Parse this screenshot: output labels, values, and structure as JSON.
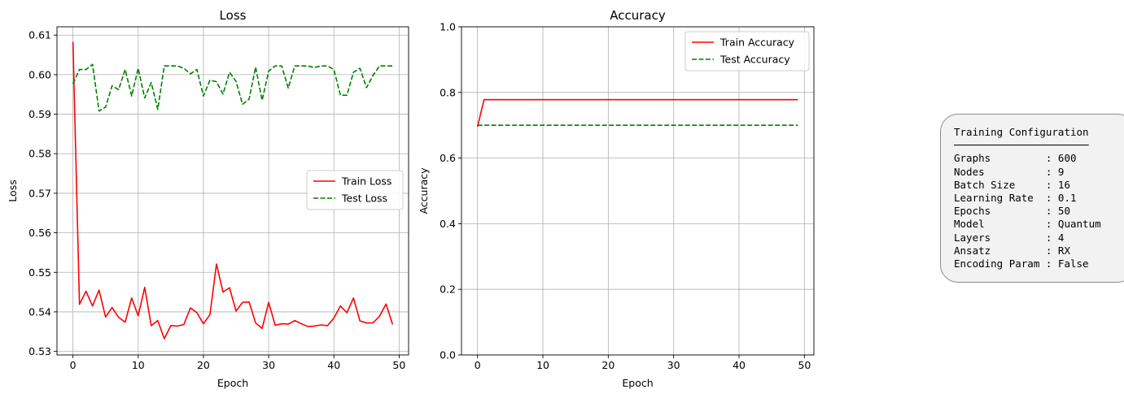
{
  "chart_data": [
    {
      "type": "line",
      "title": "Loss",
      "xlabel": "Epoch",
      "ylabel": "Loss",
      "xlim": [
        -2.45,
        51.45
      ],
      "ylim": [
        0.5291,
        0.6121
      ],
      "xticks": [
        0,
        10,
        20,
        30,
        40,
        50
      ],
      "yticks": [
        0.53,
        0.54,
        0.55,
        0.56,
        0.57,
        0.58,
        0.59,
        0.6,
        0.61
      ],
      "ytick_labels": [
        "0.53",
        "0.54",
        "0.55",
        "0.56",
        "0.57",
        "0.58",
        "0.59",
        "0.60",
        "0.61"
      ],
      "grid": true,
      "legend_position": "center-right",
      "series": [
        {
          "name": "Train Loss",
          "color": "#ff0000",
          "style": "solid",
          "x": [
            0,
            1,
            2,
            3,
            4,
            5,
            6,
            7,
            8,
            9,
            10,
            11,
            12,
            13,
            14,
            15,
            16,
            17,
            18,
            19,
            20,
            21,
            22,
            23,
            24,
            25,
            26,
            27,
            28,
            29,
            30,
            31,
            32,
            33,
            34,
            35,
            36,
            37,
            38,
            39,
            40,
            41,
            42,
            43,
            44,
            45,
            46,
            47,
            48,
            49
          ],
          "values": [
            0.6083,
            0.5419,
            0.5452,
            0.5415,
            0.5455,
            0.5387,
            0.5411,
            0.5386,
            0.5374,
            0.5435,
            0.539,
            0.5462,
            0.5365,
            0.5378,
            0.5332,
            0.5365,
            0.5364,
            0.5368,
            0.541,
            0.5398,
            0.537,
            0.5393,
            0.5521,
            0.545,
            0.5461,
            0.5402,
            0.5424,
            0.5425,
            0.5372,
            0.5358,
            0.5424,
            0.5366,
            0.537,
            0.5369,
            0.5378,
            0.537,
            0.5363,
            0.5364,
            0.5367,
            0.5365,
            0.5384,
            0.5415,
            0.5398,
            0.5435,
            0.5377,
            0.5372,
            0.5372,
            0.5389,
            0.542,
            0.5368
          ]
        },
        {
          "name": "Test Loss",
          "color": "#008000",
          "style": "dashed",
          "x": [
            0,
            1,
            2,
            3,
            4,
            5,
            6,
            7,
            8,
            9,
            10,
            11,
            12,
            13,
            14,
            15,
            16,
            17,
            18,
            19,
            20,
            21,
            22,
            23,
            24,
            25,
            26,
            27,
            28,
            29,
            30,
            31,
            32,
            33,
            34,
            35,
            36,
            37,
            38,
            39,
            40,
            41,
            42,
            43,
            44,
            45,
            46,
            47,
            48,
            49
          ],
          "values": [
            0.5977,
            0.6013,
            0.6013,
            0.6026,
            0.5908,
            0.5918,
            0.5972,
            0.5962,
            0.6013,
            0.5946,
            0.6016,
            0.5941,
            0.598,
            0.5912,
            0.6022,
            0.6022,
            0.6022,
            0.6016,
            0.6002,
            0.6013,
            0.5946,
            0.5986,
            0.5982,
            0.5951,
            0.6006,
            0.5983,
            0.5925,
            0.5938,
            0.6019,
            0.5935,
            0.6009,
            0.6022,
            0.6022,
            0.5966,
            0.6022,
            0.6022,
            0.6022,
            0.6018,
            0.6022,
            0.6022,
            0.6013,
            0.5948,
            0.5948,
            0.6006,
            0.6016,
            0.5967,
            0.5998,
            0.6022,
            0.6022,
            0.6022
          ]
        }
      ]
    },
    {
      "type": "line",
      "title": "Accuracy",
      "xlabel": "Epoch",
      "ylabel": "Accuracy",
      "xlim": [
        -2.45,
        51.45
      ],
      "ylim": [
        0.0,
        1.0
      ],
      "xticks": [
        0,
        10,
        20,
        30,
        40,
        50
      ],
      "yticks": [
        0.0,
        0.2,
        0.4,
        0.6,
        0.8,
        1.0
      ],
      "ytick_labels": [
        "0.0",
        "0.2",
        "0.4",
        "0.6",
        "0.8",
        "1.0"
      ],
      "grid": true,
      "legend_position": "top-right",
      "series": [
        {
          "name": "Train Accuracy",
          "color": "#ff0000",
          "style": "solid",
          "x": [
            0,
            1,
            2,
            3,
            4,
            5,
            6,
            7,
            8,
            9,
            10,
            11,
            12,
            13,
            14,
            15,
            16,
            17,
            18,
            19,
            20,
            21,
            22,
            23,
            24,
            25,
            26,
            27,
            28,
            29,
            30,
            31,
            32,
            33,
            34,
            35,
            36,
            37,
            38,
            39,
            40,
            41,
            42,
            43,
            44,
            45,
            46,
            47,
            48,
            49
          ],
          "values": [
            0.695,
            0.778,
            0.778,
            0.778,
            0.778,
            0.778,
            0.778,
            0.778,
            0.778,
            0.778,
            0.778,
            0.778,
            0.778,
            0.778,
            0.778,
            0.778,
            0.778,
            0.778,
            0.778,
            0.778,
            0.778,
            0.778,
            0.778,
            0.778,
            0.778,
            0.778,
            0.778,
            0.778,
            0.778,
            0.778,
            0.778,
            0.778,
            0.778,
            0.778,
            0.778,
            0.778,
            0.778,
            0.778,
            0.778,
            0.778,
            0.778,
            0.778,
            0.778,
            0.778,
            0.778,
            0.778,
            0.778,
            0.778,
            0.778,
            0.778
          ]
        },
        {
          "name": "Test Accuracy",
          "color": "#008000",
          "style": "dashed",
          "x": [
            0,
            1,
            2,
            3,
            4,
            5,
            6,
            7,
            8,
            9,
            10,
            11,
            12,
            13,
            14,
            15,
            16,
            17,
            18,
            19,
            20,
            21,
            22,
            23,
            24,
            25,
            26,
            27,
            28,
            29,
            30,
            31,
            32,
            33,
            34,
            35,
            36,
            37,
            38,
            39,
            40,
            41,
            42,
            43,
            44,
            45,
            46,
            47,
            48,
            49
          ],
          "values": [
            0.7,
            0.7,
            0.7,
            0.7,
            0.7,
            0.7,
            0.7,
            0.7,
            0.7,
            0.7,
            0.7,
            0.7,
            0.7,
            0.7,
            0.7,
            0.7,
            0.7,
            0.7,
            0.7,
            0.7,
            0.7,
            0.7,
            0.7,
            0.7,
            0.7,
            0.7,
            0.7,
            0.7,
            0.7,
            0.7,
            0.7,
            0.7,
            0.7,
            0.7,
            0.7,
            0.7,
            0.7,
            0.7,
            0.7,
            0.7,
            0.7,
            0.7,
            0.7,
            0.7,
            0.7,
            0.7,
            0.7,
            0.7,
            0.7,
            0.7
          ]
        }
      ]
    }
  ],
  "config_box": {
    "text": "Training Configuration\n──────────────────────\nGraphs         : 600\nNodes          : 9\nBatch Size     : 16\nLearning Rate  : 0.1\nEpochs         : 50\nModel          : Quantum\nLayers         : 4\nAnsatz         : RX\nEncoding Param : False"
  }
}
